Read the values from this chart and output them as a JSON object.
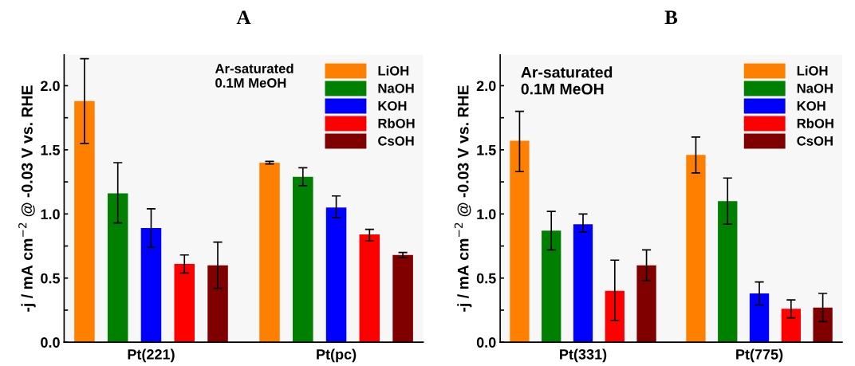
{
  "chart_data": [
    {
      "type": "bar",
      "title": "A",
      "ylabel": "-j / mA cm$^{−2}$ @ -0.03 V vs. RHE",
      "categories": [
        "Pt(221)",
        "Pt(pc)"
      ],
      "series": [
        {
          "name": "LiOH",
          "color": "#ff8000",
          "values": [
            1.88,
            1.4
          ],
          "errors": [
            [
              1.55,
              2.21
            ],
            [
              1.39,
              1.41
            ]
          ]
        },
        {
          "name": "NaOH",
          "color": "#008000",
          "values": [
            1.16,
            1.29
          ],
          "errors": [
            [
              0.93,
              1.4
            ],
            [
              1.22,
              1.36
            ]
          ]
        },
        {
          "name": "KOH",
          "color": "#0000ff",
          "values": [
            0.89,
            1.05
          ],
          "errors": [
            [
              0.74,
              1.04
            ],
            [
              0.97,
              1.14
            ]
          ]
        },
        {
          "name": "RbOH",
          "color": "#ff0000",
          "values": [
            0.61,
            0.84
          ],
          "errors": [
            [
              0.54,
              0.68
            ],
            [
              0.79,
              0.88
            ]
          ]
        },
        {
          "name": "CsOH",
          "color": "#800000",
          "values": [
            0.6,
            0.68
          ],
          "errors": [
            [
              0.42,
              0.78
            ],
            [
              0.66,
              0.7
            ]
          ]
        }
      ],
      "ylim": [
        0,
        2.24
      ],
      "yticks": [
        {
          "value": 0.0,
          "label": "0.0"
        },
        {
          "value": 0.25,
          "label": null
        },
        {
          "value": 0.5,
          "label": "0.5"
        },
        {
          "value": 0.75,
          "label": null
        },
        {
          "value": 1.0,
          "label": "1.0"
        },
        {
          "value": 1.25,
          "label": null
        },
        {
          "value": 1.5,
          "label": "1.5"
        },
        {
          "value": 1.75,
          "label": null
        },
        {
          "value": 2.0,
          "label": "2.0"
        }
      ],
      "annotations": [
        "Ar-saturated\n0.1M MeOH"
      ],
      "legend": "top right",
      "grid": false
    },
    {
      "type": "bar",
      "title": "B",
      "ylabel": "-j / mA cm$^{−2}$ @ -0.03 V vs. RHE",
      "categories": [
        "Pt(331)",
        "Pt(775)"
      ],
      "series": [
        {
          "name": "LiOH",
          "color": "#ff8000",
          "values": [
            1.57,
            1.46
          ],
          "errors": [
            [
              1.33,
              1.8
            ],
            [
              1.32,
              1.6
            ]
          ]
        },
        {
          "name": "NaOH",
          "color": "#008000",
          "values": [
            0.87,
            1.1
          ],
          "errors": [
            [
              0.72,
              1.02
            ],
            [
              0.92,
              1.28
            ]
          ]
        },
        {
          "name": "KOH",
          "color": "#0000ff",
          "values": [
            0.92,
            0.38
          ],
          "errors": [
            [
              0.86,
              1.0
            ],
            [
              0.29,
              0.47
            ]
          ]
        },
        {
          "name": "RbOH",
          "color": "#ff0000",
          "values": [
            0.4,
            0.26
          ],
          "errors": [
            [
              0.17,
              0.64
            ],
            [
              0.19,
              0.33
            ]
          ]
        },
        {
          "name": "CsOH",
          "color": "#800000",
          "values": [
            0.6,
            0.27
          ],
          "errors": [
            [
              0.48,
              0.72
            ],
            [
              0.16,
              0.38
            ]
          ]
        }
      ],
      "ylim": [
        0,
        2.24
      ],
      "yticks": [
        {
          "value": 0.0,
          "label": "0.0"
        },
        {
          "value": 0.25,
          "label": null
        },
        {
          "value": 0.5,
          "label": "0.5"
        },
        {
          "value": 0.75,
          "label": null
        },
        {
          "value": 1.0,
          "label": "1.0"
        },
        {
          "value": 1.25,
          "label": null
        },
        {
          "value": 1.5,
          "label": "1.5"
        },
        {
          "value": 1.75,
          "label": null
        },
        {
          "value": 2.0,
          "label": "2.0"
        }
      ],
      "annotations": [
        "Ar-saturated\n0.1M MeOH"
      ],
      "legend": "top right",
      "grid": false
    }
  ]
}
